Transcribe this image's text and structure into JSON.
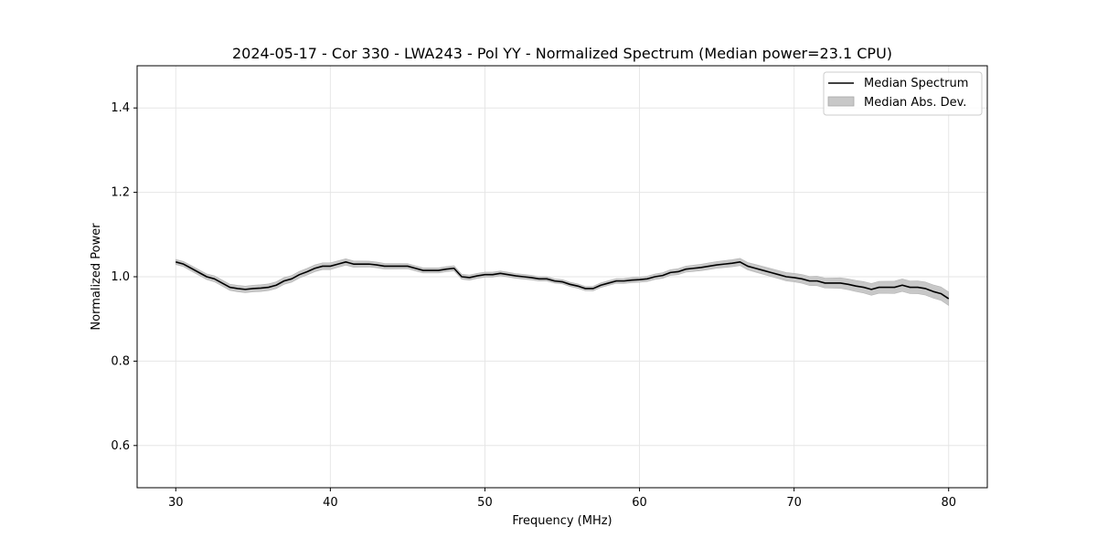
{
  "chart_data": {
    "type": "line",
    "title": "2024-05-17 - Cor 330 - LWA243 - Pol YY - Normalized Spectrum (Median power=23.1 CPU)",
    "xlabel": "Frequency (MHz)",
    "ylabel": "Normalized Power",
    "xlim": [
      27.5,
      82.5
    ],
    "ylim": [
      0.5,
      1.5
    ],
    "xticks": [
      30,
      40,
      50,
      60,
      70,
      80
    ],
    "xtick_labels": [
      "30",
      "40",
      "50",
      "60",
      "70",
      "80"
    ],
    "yticks": [
      0.6,
      0.8,
      1.0,
      1.2,
      1.4
    ],
    "ytick_labels": [
      "0.6",
      "0.8",
      "1.0",
      "1.2",
      "1.4"
    ],
    "grid": true,
    "legend_position": "top-right",
    "legend": [
      {
        "label": "Median Spectrum",
        "kind": "line",
        "color": "#000000"
      },
      {
        "label": "Median Abs. Dev.",
        "kind": "band",
        "color": "#c8c8c8"
      }
    ],
    "series": [
      {
        "name": "Median Spectrum",
        "color": "#000000",
        "x": [
          30.0,
          30.5,
          31.0,
          31.5,
          32.0,
          32.5,
          33.0,
          33.5,
          34.0,
          34.5,
          35.0,
          35.5,
          36.0,
          36.5,
          37.0,
          37.5,
          38.0,
          38.5,
          39.0,
          39.5,
          40.0,
          40.5,
          41.0,
          41.5,
          42.0,
          42.5,
          43.0,
          43.5,
          44.0,
          44.5,
          45.0,
          45.5,
          46.0,
          46.5,
          47.0,
          47.5,
          48.0,
          48.5,
          49.0,
          49.5,
          50.0,
          50.5,
          51.0,
          51.5,
          52.0,
          52.5,
          53.0,
          53.5,
          54.0,
          54.5,
          55.0,
          55.5,
          56.0,
          56.5,
          57.0,
          57.5,
          58.0,
          58.5,
          59.0,
          59.5,
          60.0,
          60.5,
          61.0,
          61.5,
          62.0,
          62.5,
          63.0,
          63.5,
          64.0,
          64.5,
          65.0,
          65.5,
          66.0,
          66.5,
          67.0,
          67.5,
          68.0,
          68.5,
          69.0,
          69.5,
          70.0,
          70.5,
          71.0,
          71.5,
          72.0,
          72.5,
          73.0,
          73.5,
          74.0,
          74.5,
          75.0,
          75.5,
          76.0,
          76.5,
          77.0,
          77.5,
          78.0,
          78.5,
          79.0,
          79.5,
          80.0
        ],
        "values": [
          1.035,
          1.03,
          1.02,
          1.01,
          1.0,
          0.995,
          0.985,
          0.975,
          0.972,
          0.97,
          0.972,
          0.973,
          0.975,
          0.98,
          0.99,
          0.995,
          1.005,
          1.012,
          1.02,
          1.025,
          1.025,
          1.03,
          1.035,
          1.03,
          1.03,
          1.03,
          1.028,
          1.025,
          1.025,
          1.025,
          1.025,
          1.02,
          1.015,
          1.015,
          1.015,
          1.018,
          1.02,
          1.0,
          0.998,
          1.002,
          1.005,
          1.005,
          1.008,
          1.005,
          1.002,
          1.0,
          0.998,
          0.995,
          0.995,
          0.99,
          0.988,
          0.982,
          0.978,
          0.972,
          0.972,
          0.98,
          0.985,
          0.99,
          0.99,
          0.992,
          0.993,
          0.995,
          1.0,
          1.003,
          1.01,
          1.012,
          1.018,
          1.02,
          1.022,
          1.025,
          1.028,
          1.03,
          1.032,
          1.035,
          1.025,
          1.02,
          1.015,
          1.01,
          1.005,
          1.0,
          0.998,
          0.995,
          0.99,
          0.99,
          0.985,
          0.985,
          0.985,
          0.982,
          0.978,
          0.975,
          0.97,
          0.975,
          0.975,
          0.975,
          0.98,
          0.975,
          0.975,
          0.972,
          0.965,
          0.96,
          0.948
        ]
      },
      {
        "name": "Median Abs. Dev.",
        "color": "#c8c8c8",
        "x": [
          30.0,
          35.0,
          40.0,
          45.0,
          50.0,
          55.0,
          60.0,
          65.0,
          70.0,
          75.0,
          80.0
        ],
        "values": [
          0.006,
          0.008,
          0.008,
          0.006,
          0.006,
          0.005,
          0.006,
          0.008,
          0.01,
          0.014,
          0.016
        ]
      }
    ]
  }
}
